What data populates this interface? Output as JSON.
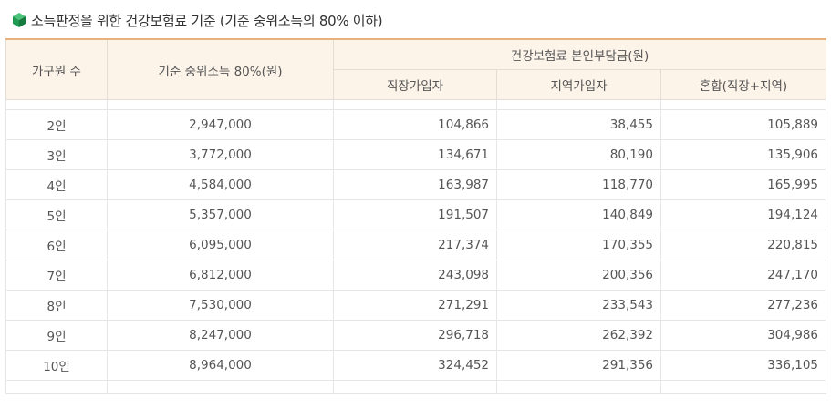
{
  "title": "소득판정을 위한 건강보험료 기준 (기준 중위소득의 80% 이하)",
  "title_icon": "green-cube-icon",
  "accent_color": "#e8b27c",
  "header_bg": "#fcf3e9",
  "headers": {
    "household": "가구원 수",
    "income": "기준 중위소득 80%(원)",
    "premium_group": "건강보험료 본인부담금(원)",
    "employee": "직장가입자",
    "regional": "지역가입자",
    "mixed": "혼합(직장+지역)"
  },
  "rows": [
    {
      "household": "2인",
      "income": "2,947,000",
      "employee": "104,866",
      "regional": "38,455",
      "mixed": "105,889"
    },
    {
      "household": "3인",
      "income": "3,772,000",
      "employee": "134,671",
      "regional": "80,190",
      "mixed": "135,906"
    },
    {
      "household": "4인",
      "income": "4,584,000",
      "employee": "163,987",
      "regional": "118,770",
      "mixed": "165,995"
    },
    {
      "household": "5인",
      "income": "5,357,000",
      "employee": "191,507",
      "regional": "140,849",
      "mixed": "194,124"
    },
    {
      "household": "6인",
      "income": "6,095,000",
      "employee": "217,374",
      "regional": "170,355",
      "mixed": "220,815"
    },
    {
      "household": "7인",
      "income": "6,812,000",
      "employee": "243,098",
      "regional": "200,356",
      "mixed": "247,170"
    },
    {
      "household": "8인",
      "income": "7,530,000",
      "employee": "271,291",
      "regional": "233,543",
      "mixed": "277,236"
    },
    {
      "household": "9인",
      "income": "8,247,000",
      "employee": "296,718",
      "regional": "262,392",
      "mixed": "304,986"
    },
    {
      "household": "10인",
      "income": "8,964,000",
      "employee": "324,452",
      "regional": "291,356",
      "mixed": "336,105"
    }
  ]
}
